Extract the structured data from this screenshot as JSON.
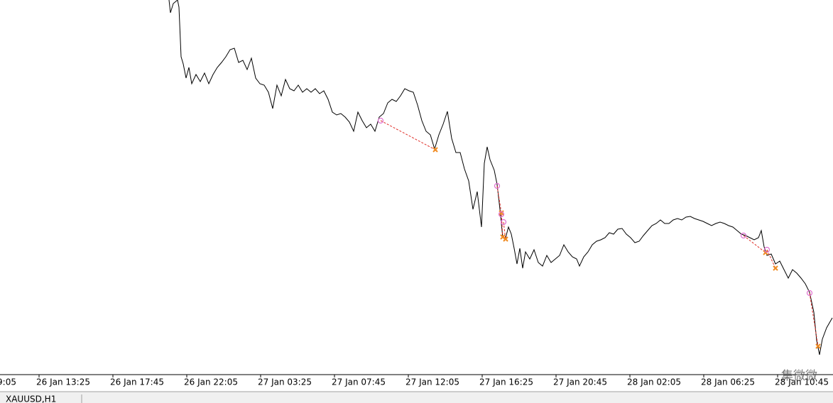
{
  "chart_data": {
    "type": "line",
    "x": [
      238,
      240,
      244,
      250,
      252,
      255,
      258,
      262,
      266,
      270,
      276,
      282,
      288,
      294,
      300,
      306,
      312,
      318,
      324,
      330,
      336,
      342,
      348,
      354,
      360,
      366,
      372,
      378,
      384,
      390,
      396,
      402,
      408,
      414,
      420,
      426,
      432,
      438,
      444,
      450,
      456,
      462,
      468,
      474,
      480,
      486,
      492,
      498,
      504,
      510,
      516,
      522,
      528,
      534,
      540,
      546,
      552,
      558,
      564,
      570,
      576,
      582,
      588,
      594,
      600,
      606,
      612,
      618,
      624,
      630,
      636,
      642,
      648,
      654,
      660,
      666,
      672,
      678,
      682,
      686,
      690,
      696,
      700,
      704,
      708,
      712,
      716,
      720,
      724,
      728,
      732,
      736,
      740,
      746,
      752,
      758,
      764,
      770,
      776,
      782,
      788,
      794,
      800,
      806,
      812,
      816,
      822,
      828,
      834,
      840,
      846,
      852,
      858,
      864,
      870,
      876,
      882,
      888,
      894,
      900,
      906,
      912,
      918,
      924,
      930,
      936,
      942,
      948,
      954,
      960,
      966,
      972,
      978,
      984,
      990,
      996,
      1002,
      1008,
      1014,
      1020,
      1026,
      1032,
      1038,
      1044,
      1050,
      1056,
      1062,
      1068,
      1072,
      1076,
      1080,
      1086,
      1092,
      1098,
      1104,
      1110,
      1116,
      1122,
      1128,
      1134,
      1140,
      1146,
      1150,
      1154,
      1158,
      1164,
      1172
    ],
    "series": [
      {
        "color": "#000000",
        "values": [
          528,
          510,
          523,
          528,
          518,
          448,
          438,
          418,
          433,
          410,
          423,
          413,
          425,
          410,
          423,
          433,
          440,
          448,
          458,
          460,
          440,
          443,
          430,
          446,
          418,
          410,
          408,
          398,
          375,
          408,
          393,
          416,
          403,
          400,
          408,
          398,
          403,
          398,
          403,
          396,
          400,
          388,
          370,
          366,
          368,
          363,
          356,
          343,
          370,
          358,
          348,
          353,
          343,
          363,
          368,
          383,
          388,
          385,
          393,
          403,
          400,
          398,
          380,
          358,
          343,
          338,
          318,
          338,
          353,
          371,
          333,
          313,
          313,
          290,
          273,
          233,
          258,
          208,
          298,
          321,
          303,
          288,
          268,
          233,
          193,
          193,
          208,
          198,
          178,
          156,
          178,
          150,
          173,
          163,
          176,
          158,
          153,
          168,
          158,
          163,
          168,
          183,
          173,
          166,
          163,
          153,
          166,
          173,
          183,
          188,
          190,
          193,
          200,
          198,
          205,
          206,
          198,
          193,
          186,
          188,
          196,
          203,
          210,
          213,
          218,
          213,
          213,
          218,
          220,
          218,
          222,
          223,
          220,
          218,
          216,
          213,
          210,
          213,
          215,
          213,
          210,
          208,
          203,
          198,
          196,
          193,
          190,
          193,
          203,
          180,
          168,
          170,
          156,
          160,
          148,
          136,
          148,
          143,
          136,
          128,
          116,
          88,
          48,
          28,
          50,
          66,
          80
        ]
      }
    ],
    "trades": [
      {
        "x0": 536,
        "y0": 358,
        "x1": 613,
        "y1": 317
      },
      {
        "x0": 700,
        "y0": 266,
        "x1": 706,
        "y1": 228
      },
      {
        "x0": 706,
        "y0": 226,
        "x1": 708,
        "y1": 194
      },
      {
        "x0": 709,
        "y0": 215,
        "x1": 712,
        "y1": 191
      },
      {
        "x0": 1047,
        "y0": 196,
        "x1": 1078,
        "y1": 172
      },
      {
        "x0": 1080,
        "y0": 176,
        "x1": 1092,
        "y1": 150
      },
      {
        "x0": 1140,
        "y0": 115,
        "x1": 1152,
        "y1": 40
      }
    ],
    "xlim": [
      0,
      1173
    ],
    "ylim": [
      0,
      528
    ],
    "xticks": [
      {
        "value": -49,
        "label": "9:05"
      },
      {
        "value": 55,
        "label": "26 Jan 13:25"
      },
      {
        "value": 159,
        "label": "26 Jan 17:45"
      },
      {
        "value": 263,
        "label": "26 Jan 22:05"
      },
      {
        "value": 367,
        "label": "27 Jan 03:25"
      },
      {
        "value": 471,
        "label": "27 Jan 07:45"
      },
      {
        "value": 575,
        "label": "27 Jan 12:05"
      },
      {
        "value": 679,
        "label": "27 Jan 16:25"
      },
      {
        "value": 783,
        "label": "27 Jan 20:45"
      },
      {
        "value": 887,
        "label": "28 Jan 02:05"
      },
      {
        "value": 991,
        "label": "28 Jan 06:25"
      },
      {
        "value": 1095,
        "label": "28 Jan 10:45"
      }
    ],
    "tab": "XAUUSD,H1",
    "watermark": "集微微"
  }
}
